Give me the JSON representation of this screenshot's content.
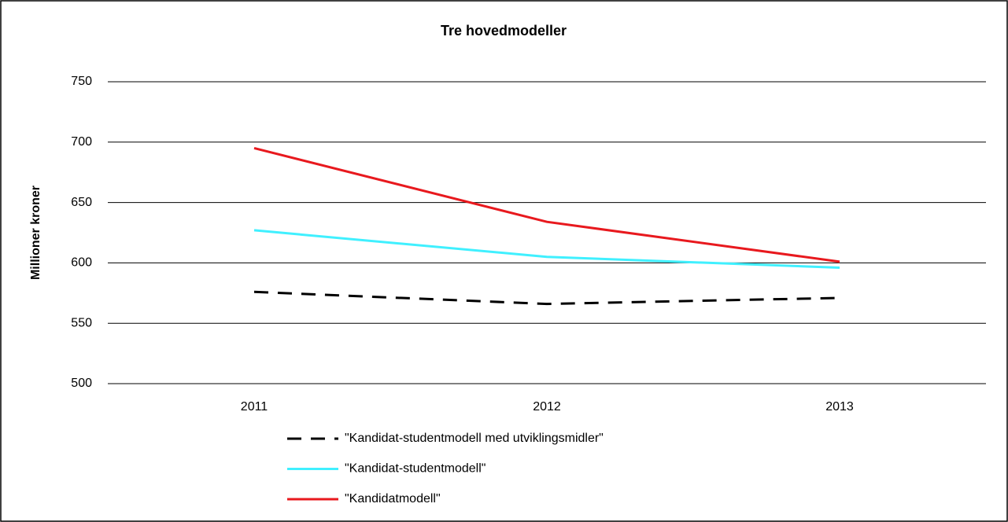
{
  "chart_data": {
    "type": "line",
    "title": "Tre hovedmodeller",
    "y_label": "Millioner kroner",
    "categories": [
      "2011",
      "2012",
      "2013"
    ],
    "series": [
      {
        "name": "\"Kandidat-studentmodell med utviklingsmidler\"",
        "color": "#000000",
        "dashed": true,
        "values": [
          576,
          566,
          571
        ]
      },
      {
        "name": "\"Kandidat-studentmodell\"",
        "color": "#40f0ff",
        "dashed": false,
        "values": [
          627,
          605,
          596
        ]
      },
      {
        "name": "\"Kandidatmodell\"",
        "color": "#e8191e",
        "dashed": false,
        "values": [
          695,
          634,
          601
        ]
      }
    ],
    "ylim": [
      500,
      750
    ],
    "yticks": [
      500,
      550,
      600,
      650,
      700,
      750
    ],
    "grid": true,
    "legend": "bottom"
  }
}
